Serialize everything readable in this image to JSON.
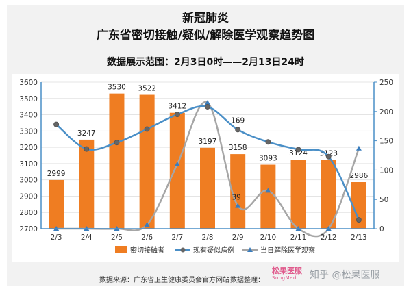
{
  "title_line1": "新冠肺炎",
  "title_line2": "广东省密切接触/疑似/解除医学观察趋势图",
  "subtitle": "数据展示范围：2月3日0时——2月13日24时",
  "footer": {
    "source": "数据来源：广东省卫生健康委员会官方网站",
    "organizer": "数据整理：",
    "logo_name": "松果医服",
    "logo_sub": "SongMed",
    "watermark": "知乎 @松果医服"
  },
  "colors": {
    "bar": "#ef7d22",
    "suspected": "#4a8fc7",
    "released": "#a6a6a6",
    "released_marker": "#3a7dbd",
    "axis": "#4a8fc7",
    "grid": "#e4e4e4"
  },
  "chart_data": {
    "type": "bar",
    "categories": [
      "2/3",
      "2/4",
      "2/5",
      "2/6",
      "2/7",
      "2/8",
      "2/9",
      "2/10",
      "2/11",
      "2/12",
      "2/13"
    ],
    "left_axis": {
      "ylim": [
        2700,
        3600
      ],
      "ticks": [
        2700,
        2800,
        2900,
        3000,
        3100,
        3200,
        3300,
        3400,
        3500,
        3600
      ]
    },
    "right_axis": {
      "ylim": [
        0,
        250
      ],
      "ticks": [
        0,
        50,
        100,
        150,
        200,
        250
      ]
    },
    "series": [
      {
        "name": "密切接触者",
        "kind": "bar",
        "axis": "left",
        "values": [
          2999,
          3247,
          3530,
          3522,
          3412,
          3197,
          3158,
          3093,
          3124,
          3123,
          2986
        ],
        "labels": [
          "2999",
          "3247",
          "3530",
          "3522",
          "3412",
          "3197",
          "3158",
          "3093",
          "3124",
          "3123",
          "2986"
        ]
      },
      {
        "name": "现有疑似病例",
        "kind": "line",
        "axis": "right",
        "values": [
          178,
          136,
          147,
          170,
          195,
          208,
          169,
          148,
          135,
          123,
          15
        ],
        "labels": [
          "",
          "",
          "",
          "",
          "",
          "",
          "169",
          "",
          "",
          "",
          ""
        ]
      },
      {
        "name": "当日解除医学观察",
        "kind": "line",
        "axis": "right",
        "values": [
          0,
          0,
          0,
          7,
          110,
          215,
          39,
          65,
          0,
          0,
          137
        ],
        "labels": [
          "",
          "",
          "",
          "",
          "",
          "",
          "39",
          "",
          "",
          "",
          ""
        ]
      }
    ],
    "legend_position": "bottom"
  }
}
